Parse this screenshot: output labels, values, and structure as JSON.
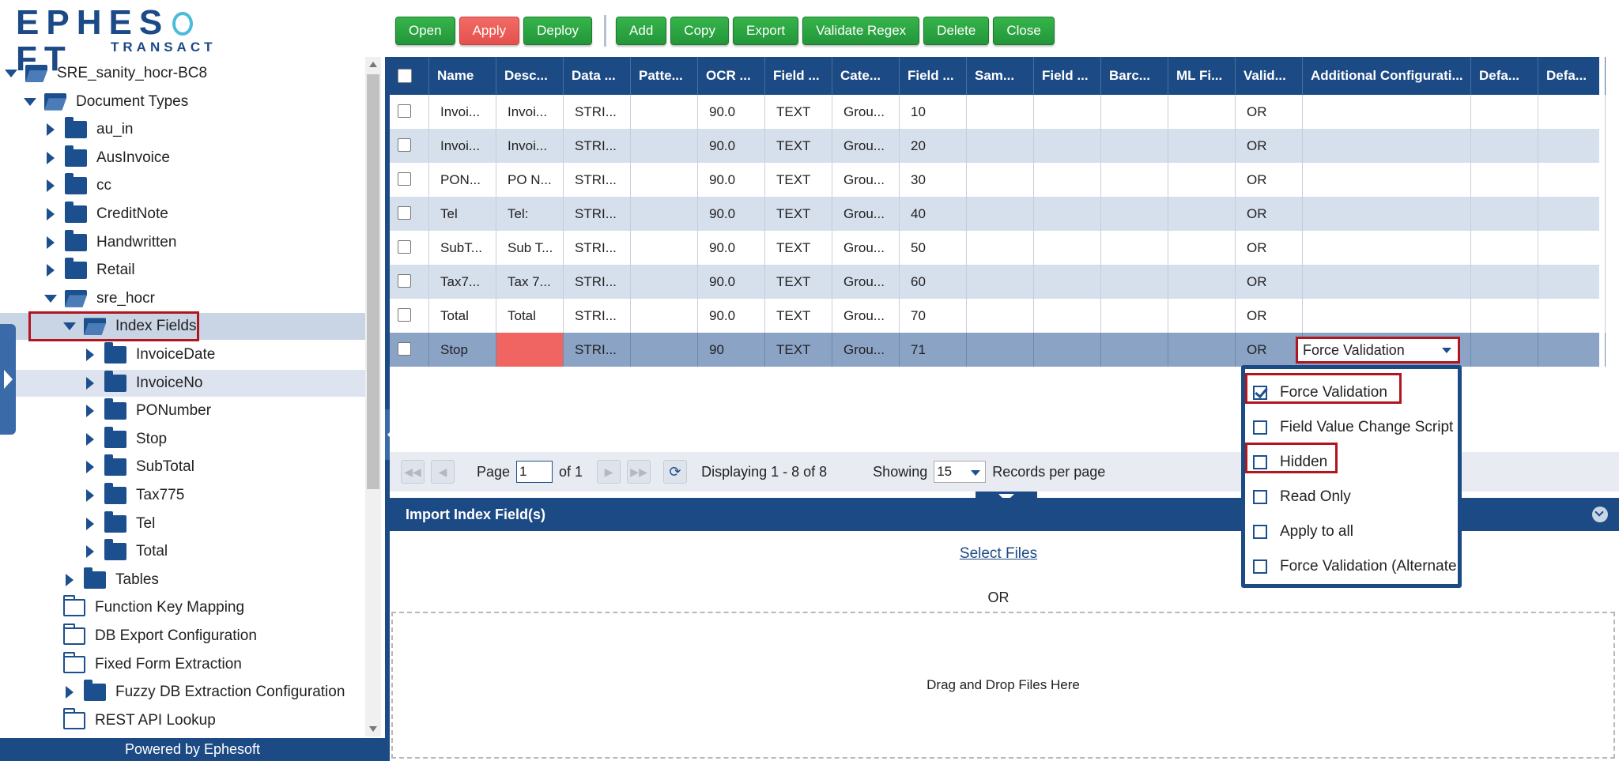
{
  "logo": {
    "brand_left": "EPHES",
    "brand_right": "FT",
    "sub": "TRANSACT"
  },
  "tree": [
    {
      "label": "SRE_sanity_hocr-BC8",
      "level": 0,
      "twisty": "down",
      "folder": "open"
    },
    {
      "label": "Document Types",
      "level": 1,
      "twisty": "down",
      "folder": "open"
    },
    {
      "label": "au_in",
      "level": 2,
      "twisty": "right",
      "folder": "solid"
    },
    {
      "label": "AusInvoice",
      "level": 2,
      "twisty": "right",
      "folder": "solid"
    },
    {
      "label": "cc",
      "level": 2,
      "twisty": "right",
      "folder": "solid"
    },
    {
      "label": "CreditNote",
      "level": 2,
      "twisty": "right",
      "folder": "solid"
    },
    {
      "label": "Handwritten",
      "level": 2,
      "twisty": "right",
      "folder": "solid"
    },
    {
      "label": "Retail",
      "level": 2,
      "twisty": "right",
      "folder": "solid"
    },
    {
      "label": "sre_hocr",
      "level": 2,
      "twisty": "down",
      "folder": "open"
    },
    {
      "label": "Index Fields",
      "level": 3,
      "twisty": "down",
      "folder": "open",
      "selected": true
    },
    {
      "label": "InvoiceDate",
      "level": 4,
      "twisty": "right",
      "folder": "solid"
    },
    {
      "label": "InvoiceNo",
      "level": 4,
      "twisty": "right",
      "folder": "solid",
      "hover": true
    },
    {
      "label": "PONumber",
      "level": 4,
      "twisty": "right",
      "folder": "solid"
    },
    {
      "label": "Stop",
      "level": 4,
      "twisty": "right",
      "folder": "solid"
    },
    {
      "label": "SubTotal",
      "level": 4,
      "twisty": "right",
      "folder": "solid"
    },
    {
      "label": "Tax775",
      "level": 4,
      "twisty": "right",
      "folder": "solid"
    },
    {
      "label": "Tel",
      "level": 4,
      "twisty": "right",
      "folder": "solid"
    },
    {
      "label": "Total",
      "level": 4,
      "twisty": "right",
      "folder": "solid"
    },
    {
      "label": "Tables",
      "level": 3,
      "twisty": "right",
      "folder": "solid"
    },
    {
      "label": "Function Key Mapping",
      "level": 3,
      "twisty": "none",
      "folder": "outline"
    },
    {
      "label": "DB Export Configuration",
      "level": 3,
      "twisty": "none",
      "folder": "outline"
    },
    {
      "label": "Fixed Form Extraction",
      "level": 3,
      "twisty": "none",
      "folder": "outline"
    },
    {
      "label": "Fuzzy DB Extraction Configuration",
      "level": 3,
      "twisty": "right",
      "folder": "solid"
    },
    {
      "label": "REST API Lookup",
      "level": 3,
      "twisty": "none",
      "folder": "outline"
    }
  ],
  "footer": "Powered by Ephesoft",
  "toolbar": {
    "group1": [
      {
        "label": "Open",
        "style": "green"
      },
      {
        "label": "Apply",
        "style": "red"
      },
      {
        "label": "Deploy",
        "style": "green"
      }
    ],
    "group2": [
      {
        "label": "Add",
        "style": "green"
      },
      {
        "label": "Copy",
        "style": "green"
      },
      {
        "label": "Export",
        "style": "green"
      },
      {
        "label": "Validate Regex",
        "style": "green"
      },
      {
        "label": "Delete",
        "style": "green"
      },
      {
        "label": "Close",
        "style": "green"
      }
    ]
  },
  "grid": {
    "columns": [
      "",
      "Name",
      "Desc...",
      "Data ...",
      "Patte...",
      "OCR ...",
      "Field ...",
      "Cate...",
      "Field ...",
      "Sam...",
      "Field ...",
      "Barc...",
      "ML Fi...",
      "Valid...",
      "Additional Configurati...",
      "Defa...",
      "Defa..."
    ],
    "rows": [
      [
        "",
        "Invoi...",
        "Invoi...",
        "STRI...",
        "",
        "90.0",
        "TEXT",
        "Grou...",
        "10",
        "",
        "",
        "",
        "",
        "OR",
        "",
        "",
        ""
      ],
      [
        "",
        "Invoi...",
        "Invoi...",
        "STRI...",
        "",
        "90.0",
        "TEXT",
        "Grou...",
        "20",
        "",
        "",
        "",
        "",
        "OR",
        "",
        "",
        ""
      ],
      [
        "",
        "PON...",
        "PO N...",
        "STRI...",
        "",
        "90.0",
        "TEXT",
        "Grou...",
        "30",
        "",
        "",
        "",
        "",
        "OR",
        "",
        "",
        ""
      ],
      [
        "",
        "Tel",
        "Tel:",
        "STRI...",
        "",
        "90.0",
        "TEXT",
        "Grou...",
        "40",
        "",
        "",
        "",
        "",
        "OR",
        "",
        "",
        ""
      ],
      [
        "",
        "SubT...",
        "Sub T...",
        "STRI...",
        "",
        "90.0",
        "TEXT",
        "Grou...",
        "50",
        "",
        "",
        "",
        "",
        "OR",
        "",
        "",
        ""
      ],
      [
        "",
        "Tax7...",
        "Tax 7...",
        "STRI...",
        "",
        "90.0",
        "TEXT",
        "Grou...",
        "60",
        "",
        "",
        "",
        "",
        "OR",
        "",
        "",
        ""
      ],
      [
        "",
        "Total",
        "Total",
        "STRI...",
        "",
        "90.0",
        "TEXT",
        "Grou...",
        "70",
        "",
        "",
        "",
        "",
        "OR",
        "",
        "",
        ""
      ],
      [
        "",
        "Stop",
        "",
        "STRI...",
        "",
        "90",
        "TEXT",
        "Grou...",
        "71",
        "",
        "",
        "",
        "",
        "OR",
        "",
        "",
        ""
      ]
    ],
    "edit_select_value": "Force Validation"
  },
  "pager": {
    "page_label": "Page",
    "page_value": "1",
    "of_label": "of 1",
    "displaying": "Displaying 1 - 8 of 8",
    "showing_label": "Showing",
    "per_page_value": "15",
    "records_label": "Records per page"
  },
  "import": {
    "title": "Import Index Field(s)",
    "select_files": "Select Files",
    "or": "OR",
    "drop": "Drag and Drop Files Here"
  },
  "menu": [
    {
      "label": "Force Validation",
      "checked": true,
      "highlight": true
    },
    {
      "label": "Field Value Change Script",
      "checked": false
    },
    {
      "label": "Hidden",
      "checked": false,
      "highlight": true
    },
    {
      "label": "Read Only",
      "checked": false
    },
    {
      "label": "Apply to all",
      "checked": false
    },
    {
      "label": "Force Validation (Alternate",
      "checked": false
    }
  ],
  "colors": {
    "brand": "#1c4a85",
    "accent_green": "#2ba842",
    "accent_red": "#f06461",
    "highlight_border": "#b1151e"
  }
}
